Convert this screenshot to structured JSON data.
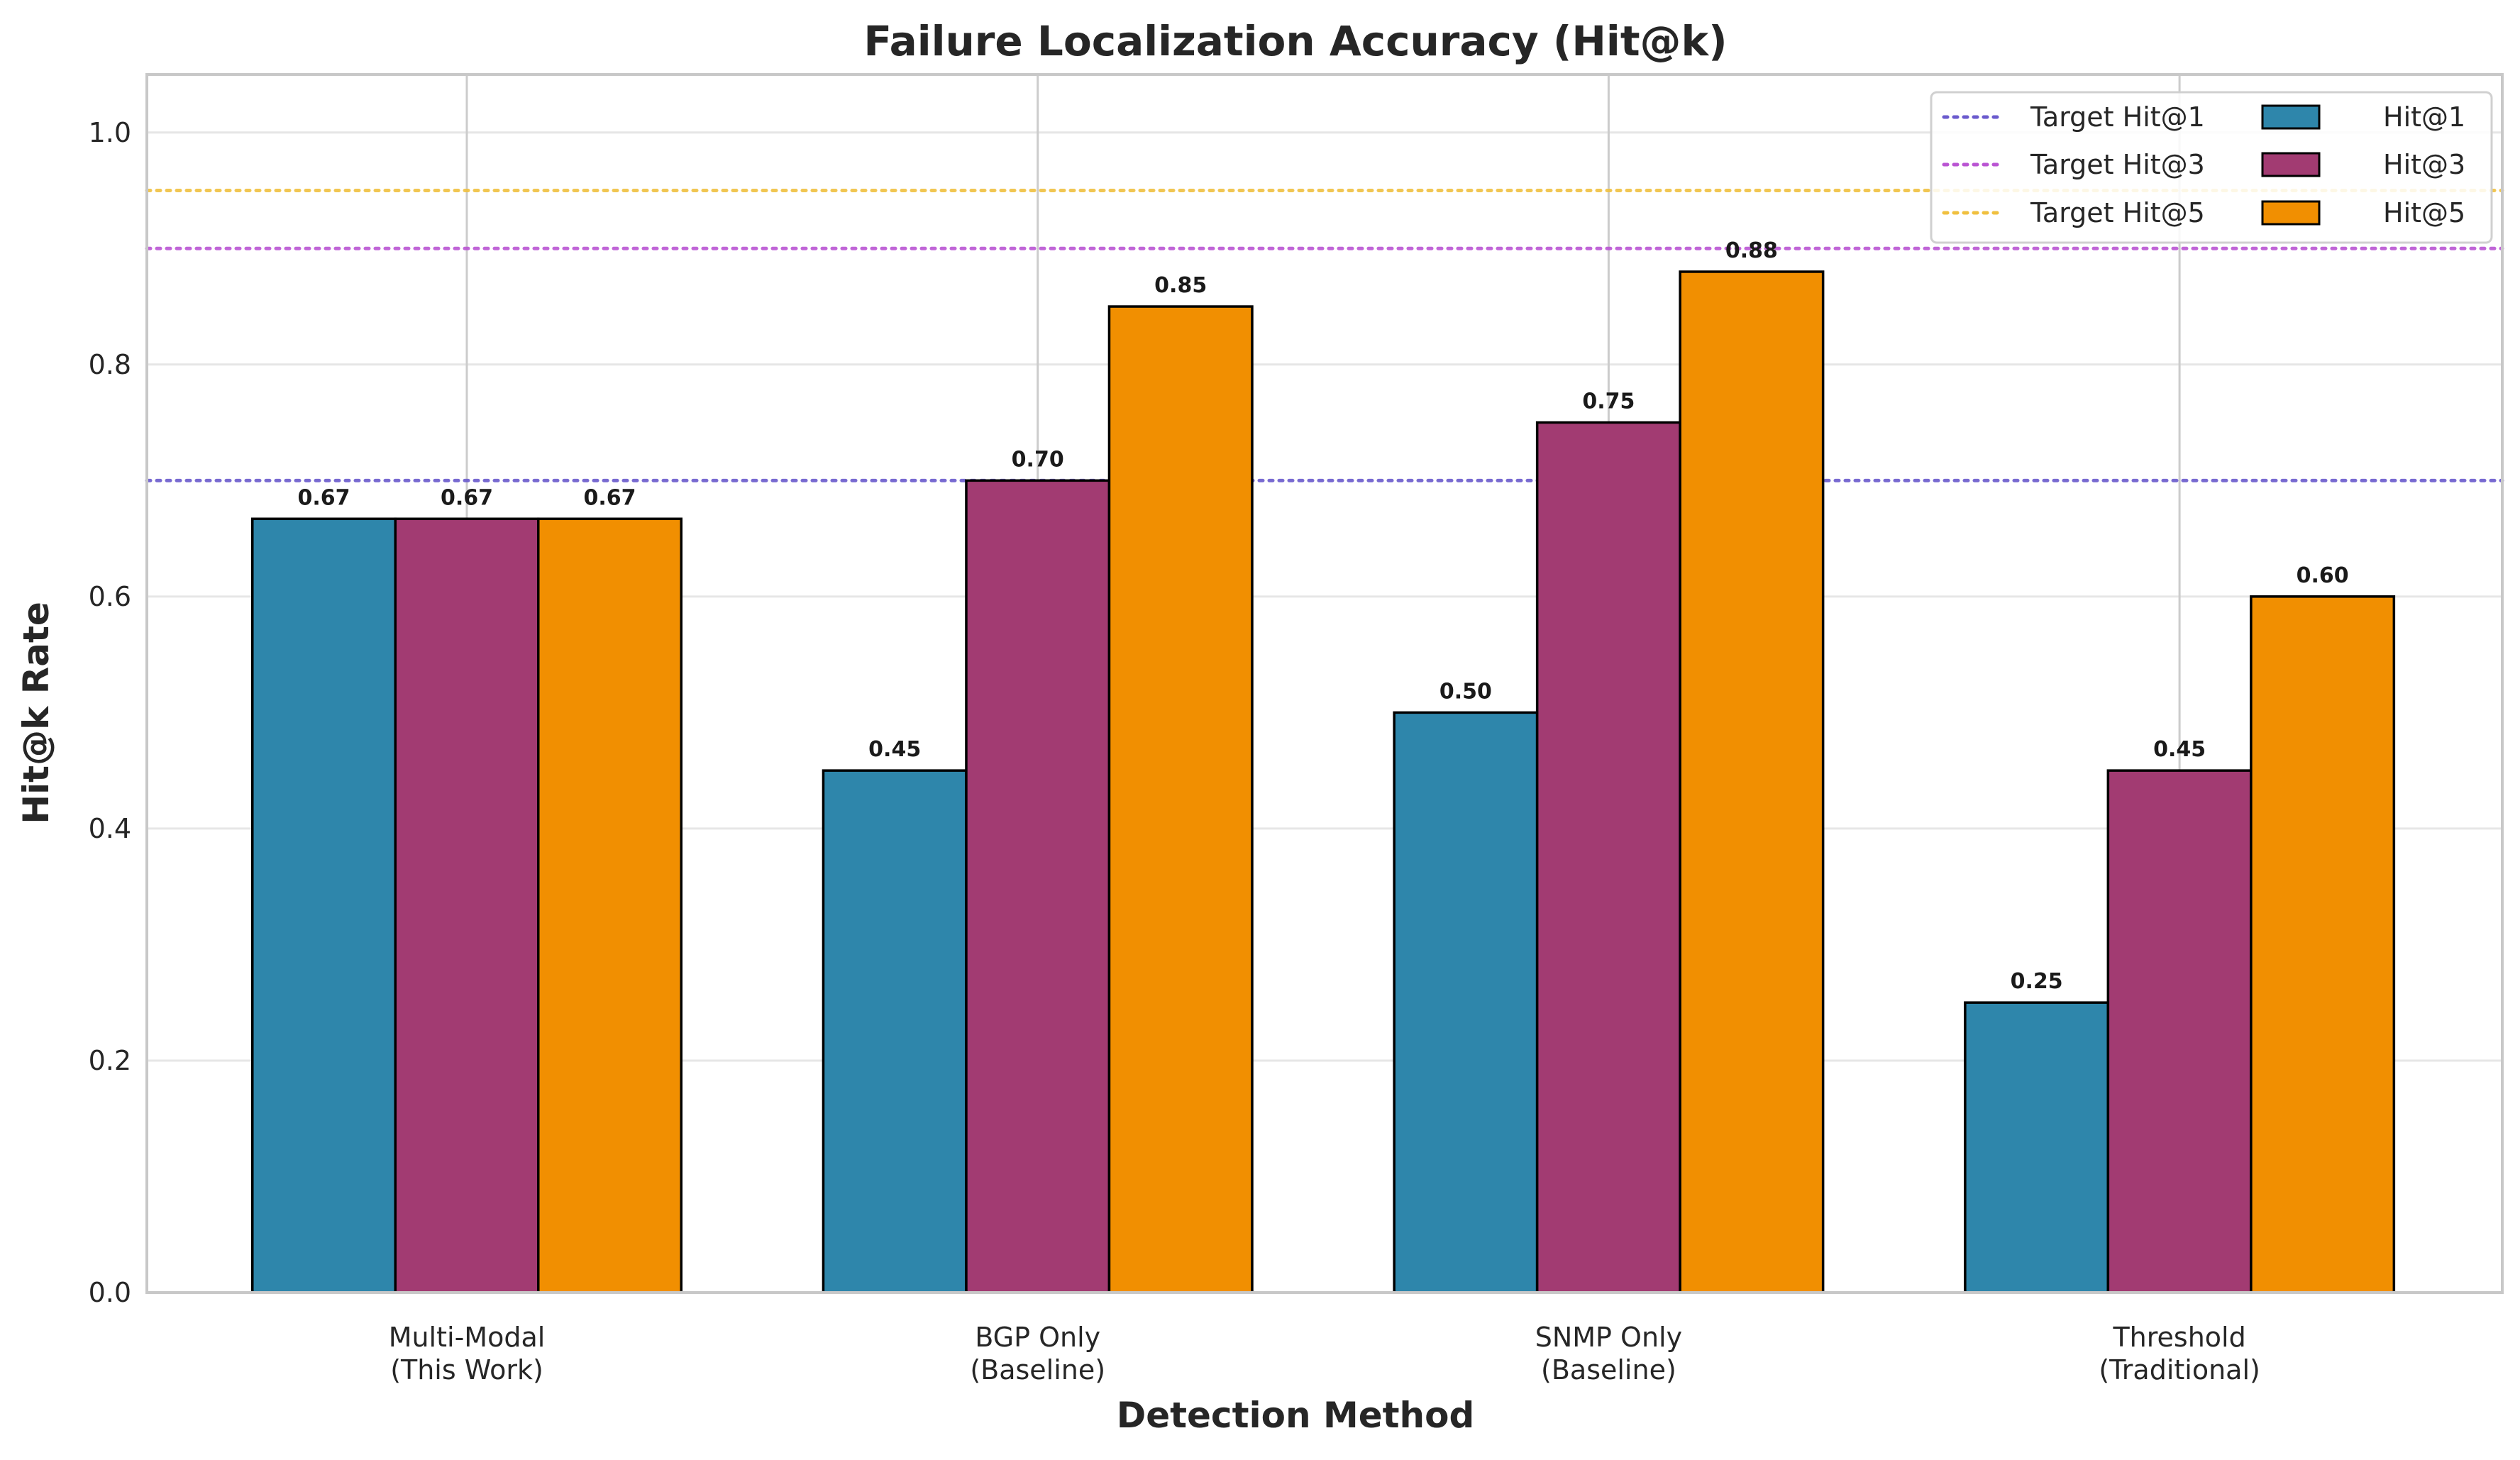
{
  "chart_data": {
    "type": "bar",
    "title": "Failure Localization Accuracy (Hit@k)",
    "xlabel": "Detection Method",
    "ylabel": "Hit@k Rate",
    "ylim": [
      0,
      1.05
    ],
    "yticks": [
      "0.0",
      "0.2",
      "0.4",
      "0.6",
      "0.8",
      "1.0"
    ],
    "yticks_values": [
      0,
      0.2,
      0.4,
      0.6,
      0.8,
      1.0
    ],
    "grid": true,
    "legend_position": "top-right",
    "categories": [
      [
        "Multi-Modal",
        "(This Work)"
      ],
      [
        "BGP Only",
        "(Baseline)"
      ],
      [
        "SNMP Only",
        "(Baseline)"
      ],
      [
        "Threshold",
        "(Traditional)"
      ]
    ],
    "series": [
      {
        "name": "Hit@1",
        "color": "#2E86AB",
        "values": [
          0.667,
          0.45,
          0.5,
          0.25
        ],
        "labels": [
          "0.67",
          "0.45",
          "0.50",
          "0.25"
        ]
      },
      {
        "name": "Hit@3",
        "color": "#A23B72",
        "values": [
          0.667,
          0.7,
          0.75,
          0.45
        ],
        "labels": [
          "0.67",
          "0.70",
          "0.75",
          "0.45"
        ]
      },
      {
        "name": "Hit@5",
        "color": "#F18F01",
        "values": [
          0.667,
          0.85,
          0.88,
          0.6
        ],
        "labels": [
          "0.67",
          "0.85",
          "0.88",
          "0.60"
        ]
      }
    ],
    "reference_lines": [
      {
        "name": "Target Hit@1",
        "value": 0.7,
        "color": "#6A5ACD"
      },
      {
        "name": "Target Hit@3",
        "value": 0.9,
        "color": "#BA55D3"
      },
      {
        "name": "Target Hit@5",
        "value": 0.95,
        "color": "#F0C040"
      }
    ]
  }
}
